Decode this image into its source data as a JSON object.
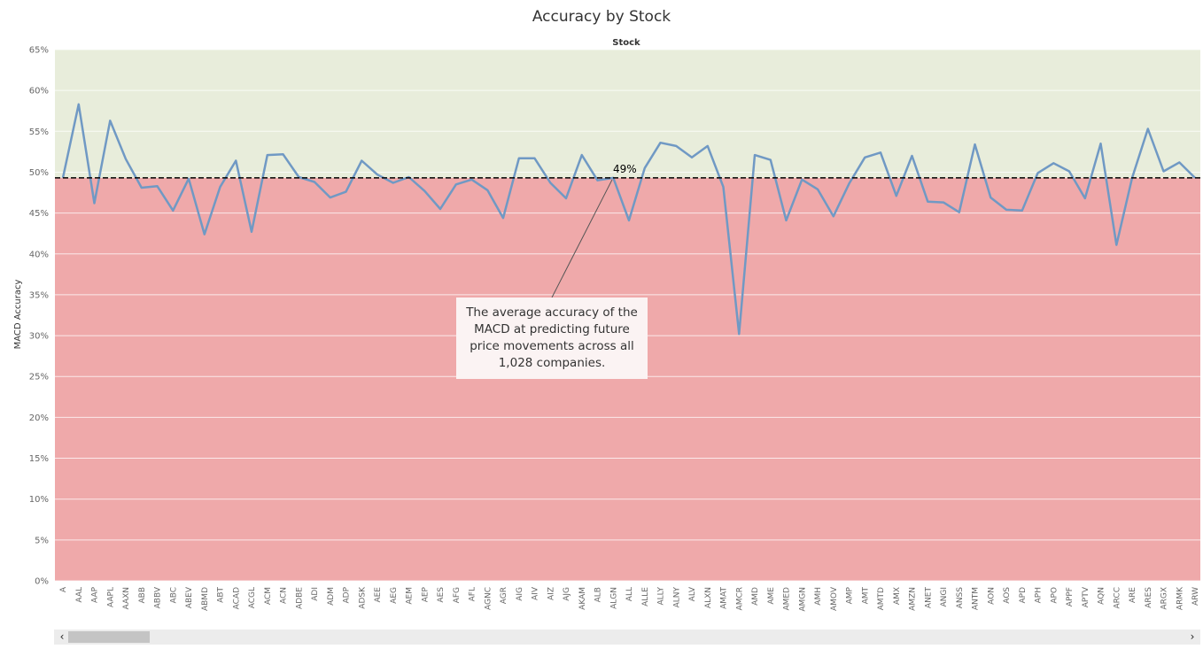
{
  "chart_data": {
    "type": "line",
    "title": "Accuracy by Stock",
    "header": "Stock",
    "ylabel": "MACD Accuracy",
    "ylim": [
      0,
      0.65
    ],
    "yticks": [
      "0%",
      "5%",
      "10%",
      "15%",
      "20%",
      "25%",
      "30%",
      "35%",
      "40%",
      "45%",
      "50%",
      "55%",
      "60%",
      "65%"
    ],
    "grid": true,
    "average": 0.493,
    "average_label": "49%",
    "annotation": "The average accuracy of the MACD at predicting future price movements across all 1,028 companies.",
    "band_colors": {
      "above": "#e8eddb",
      "below": "#efa9aa"
    },
    "line_color": "#7099c4",
    "categories": [
      "A",
      "AAL",
      "AAP",
      "AAPL",
      "AAXN",
      "ABB",
      "ABBV",
      "ABC",
      "ABEV",
      "ABMD",
      "ABT",
      "ACAD",
      "ACGL",
      "ACM",
      "ACN",
      "ADBE",
      "ADI",
      "ADM",
      "ADP",
      "ADSK",
      "AEE",
      "AEG",
      "AEM",
      "AEP",
      "AES",
      "AFG",
      "AFL",
      "AGNC",
      "AGR",
      "AIG",
      "AIV",
      "AIZ",
      "AJG",
      "AKAM",
      "ALB",
      "ALGN",
      "ALL",
      "ALLE",
      "ALLY",
      "ALNY",
      "ALV",
      "ALXN",
      "AMAT",
      "AMCR",
      "AMD",
      "AME",
      "AMED",
      "AMGN",
      "AMH",
      "AMOV",
      "AMP",
      "AMT",
      "AMTD",
      "AMX",
      "AMZN",
      "ANET",
      "ANGI",
      "ANSS",
      "ANTM",
      "AON",
      "AOS",
      "APD",
      "APH",
      "APO",
      "APPF",
      "APTV",
      "AQN",
      "ARCC",
      "ARE",
      "ARES",
      "ARGX",
      "ARMK",
      "ARW"
    ],
    "series": [
      {
        "values": [
          0.493,
          0.583,
          0.462,
          0.563,
          0.516,
          0.481,
          0.483,
          0.453,
          0.492,
          0.424,
          0.482,
          0.514,
          0.427,
          0.521,
          0.522,
          0.494,
          0.488,
          0.469,
          0.476,
          0.514,
          0.497,
          0.487,
          0.494,
          0.477,
          0.455,
          0.485,
          0.491,
          0.478,
          0.444,
          0.517,
          0.517,
          0.487,
          0.468,
          0.521,
          0.49,
          0.493,
          0.441,
          0.505,
          0.536,
          0.532,
          0.518,
          0.532,
          0.482,
          0.302,
          0.521,
          0.515,
          0.441,
          0.491,
          0.479,
          0.446,
          0.486,
          0.518,
          0.524,
          0.471,
          0.52,
          0.464,
          0.463,
          0.451,
          0.534,
          0.469,
          0.454,
          0.453,
          0.499,
          0.511,
          0.501,
          0.468,
          0.535,
          0.411,
          0.493,
          0.553,
          0.501,
          0.512,
          0.493
        ]
      }
    ]
  },
  "scrollbar": {
    "left_arrow": "‹",
    "right_arrow": "›"
  }
}
